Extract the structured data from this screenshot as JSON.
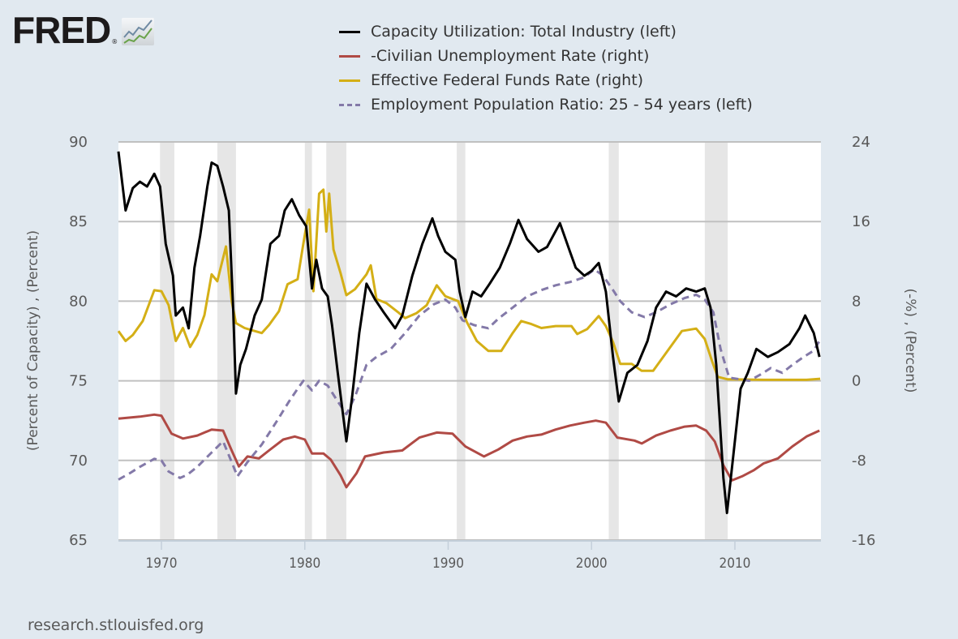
{
  "header": {
    "logo_text": "FRED",
    "logo_mark": "®",
    "logo_icon": "line-chart-icon"
  },
  "footer": {
    "source": "research.stlouisfed.org"
  },
  "colors": {
    "background": "#e1e9f0",
    "plot_background": "#ffffff",
    "recession_band": "#e6e6e6",
    "gridline": "#c0c0c0"
  },
  "chart_data": {
    "type": "line",
    "title": "",
    "xlabel": "",
    "ylabel_left": "(Percent of Capacity) , (Percent)",
    "ylabel_right": "(-%) , (Percent)",
    "xlim": [
      1967.0,
      2016.0
    ],
    "ylim_left": [
      65,
      90
    ],
    "ylim_right": [
      -16,
      24
    ],
    "x_ticks": [
      1970,
      1980,
      1990,
      2000,
      2010
    ],
    "y_ticks_left": [
      65,
      70,
      75,
      80,
      85,
      90
    ],
    "y_ticks_right": [
      -16,
      -8,
      0,
      8,
      16,
      24
    ],
    "grid": true,
    "legend_position": "top",
    "recessions": [
      [
        1969.9,
        1970.9
      ],
      [
        1973.9,
        1975.2
      ],
      [
        1980.0,
        1980.5
      ],
      [
        1981.5,
        1982.9
      ],
      [
        1990.6,
        1991.2
      ],
      [
        2001.2,
        2001.9
      ],
      [
        2007.9,
        2009.5
      ]
    ],
    "series": [
      {
        "name": "Capacity Utilization: Total Industry (left)",
        "axis": "left",
        "color": "#000000",
        "dash": false,
        "x": [
          1967.0,
          1967.5,
          1968.0,
          1968.5,
          1969.0,
          1969.5,
          1969.9,
          1970.3,
          1970.8,
          1971.0,
          1971.5,
          1971.9,
          1972.3,
          1972.7,
          1973.2,
          1973.5,
          1973.9,
          1974.3,
          1974.7,
          1975.0,
          1975.2,
          1975.5,
          1975.9,
          1976.5,
          1977.0,
          1977.6,
          1978.2,
          1978.6,
          1979.1,
          1979.6,
          1980.1,
          1980.5,
          1980.8,
          1981.2,
          1981.6,
          1981.9,
          1982.3,
          1982.9,
          1983.3,
          1983.8,
          1984.3,
          1984.9,
          1985.5,
          1986.3,
          1986.8,
          1987.5,
          1988.2,
          1988.9,
          1989.3,
          1989.8,
          1990.5,
          1990.8,
          1991.2,
          1991.7,
          1992.3,
          1992.9,
          1993.6,
          1994.3,
          1994.9,
          1995.5,
          1996.3,
          1996.9,
          1997.8,
          1998.5,
          1998.9,
          1999.5,
          2000.0,
          2000.5,
          2001.0,
          2001.5,
          2001.9,
          2002.5,
          2003.2,
          2003.9,
          2004.5,
          2005.2,
          2005.9,
          2006.6,
          2007.3,
          2007.9,
          2008.3,
          2008.7,
          2009.2,
          2009.45,
          2009.9,
          2010.4,
          2010.9,
          2011.5,
          2012.3,
          2013.0,
          2013.8,
          2014.5,
          2014.9,
          2015.5,
          2015.9
        ],
        "values": [
          89.4,
          85.7,
          87.1,
          87.5,
          87.2,
          88.0,
          87.2,
          83.6,
          81.6,
          79.1,
          79.6,
          78.3,
          82.1,
          84.1,
          87.2,
          88.7,
          88.5,
          87.2,
          85.7,
          79.6,
          74.2,
          76.0,
          77.0,
          79.1,
          80.1,
          83.6,
          84.1,
          85.7,
          86.4,
          85.4,
          84.7,
          80.8,
          82.6,
          80.8,
          80.3,
          78.5,
          75.5,
          71.2,
          74.0,
          78.0,
          81.1,
          80.1,
          79.3,
          78.3,
          79.1,
          81.6,
          83.6,
          85.2,
          84.1,
          83.1,
          82.6,
          80.6,
          79.0,
          80.6,
          80.3,
          81.1,
          82.1,
          83.6,
          85.1,
          83.9,
          83.1,
          83.4,
          84.9,
          83.1,
          82.1,
          81.6,
          81.9,
          82.4,
          80.6,
          76.5,
          73.7,
          75.5,
          76.0,
          77.5,
          79.6,
          80.6,
          80.3,
          80.8,
          80.6,
          80.8,
          79.6,
          76.0,
          68.9,
          66.7,
          70.4,
          74.5,
          75.5,
          77.0,
          76.5,
          76.8,
          77.3,
          78.3,
          79.1,
          78.0,
          76.5
        ]
      },
      {
        "name": "-Civilian Unemployment Rate (right)",
        "axis": "right",
        "color": "#b04a45",
        "dash": false,
        "x": [
          1967.0,
          1968.5,
          1969.5,
          1970.0,
          1970.7,
          1971.5,
          1972.5,
          1973.5,
          1974.3,
          1974.9,
          1975.4,
          1976.0,
          1976.8,
          1977.5,
          1978.5,
          1979.3,
          1980.0,
          1980.5,
          1981.3,
          1981.8,
          1982.5,
          1982.9,
          1983.6,
          1984.2,
          1985.5,
          1986.8,
          1988.0,
          1989.2,
          1990.3,
          1991.2,
          1992.5,
          1993.5,
          1994.5,
          1995.5,
          1996.5,
          1997.5,
          1998.5,
          1999.5,
          2000.3,
          2001.0,
          2001.8,
          2003.0,
          2003.5,
          2004.5,
          2005.5,
          2006.5,
          2007.3,
          2008.0,
          2008.6,
          2009.2,
          2009.8,
          2010.5,
          2011.3,
          2012.0,
          2013.0,
          2014.0,
          2015.0,
          2015.9
        ],
        "values": [
          -3.8,
          -3.6,
          -3.4,
          -3.5,
          -5.3,
          -5.8,
          -5.5,
          -4.9,
          -5.0,
          -7.0,
          -8.6,
          -7.6,
          -7.8,
          -7.0,
          -5.9,
          -5.6,
          -5.9,
          -7.3,
          -7.3,
          -7.9,
          -9.5,
          -10.7,
          -9.3,
          -7.6,
          -7.2,
          -7.0,
          -5.7,
          -5.2,
          -5.3,
          -6.6,
          -7.6,
          -6.9,
          -6.0,
          -5.6,
          -5.4,
          -4.9,
          -4.5,
          -4.2,
          -4.0,
          -4.2,
          -5.7,
          -6.0,
          -6.3,
          -5.5,
          -5.0,
          -4.6,
          -4.5,
          -5.0,
          -6.1,
          -8.5,
          -10.0,
          -9.6,
          -9.0,
          -8.3,
          -7.8,
          -6.6,
          -5.6,
          -5.0
        ]
      },
      {
        "name": "Effective Federal Funds Rate (right)",
        "axis": "right",
        "color": "#d4af16",
        "dash": false,
        "x": [
          1967.0,
          1967.5,
          1968.0,
          1968.7,
          1969.5,
          1970.0,
          1970.5,
          1971.0,
          1971.5,
          1972.0,
          1972.5,
          1973.0,
          1973.5,
          1973.9,
          1974.5,
          1974.9,
          1975.2,
          1975.8,
          1976.5,
          1977.0,
          1977.5,
          1978.2,
          1978.8,
          1979.5,
          1979.9,
          1980.3,
          1980.6,
          1981.0,
          1981.3,
          1981.5,
          1981.7,
          1982.0,
          1982.5,
          1982.9,
          1983.5,
          1984.3,
          1984.6,
          1985.0,
          1985.7,
          1986.5,
          1987.0,
          1987.8,
          1988.5,
          1989.2,
          1989.8,
          1990.7,
          1991.3,
          1992.0,
          1992.8,
          1993.7,
          1994.5,
          1995.1,
          1995.8,
          1996.5,
          1997.5,
          1998.6,
          1999.0,
          1999.7,
          2000.5,
          2001.0,
          2001.5,
          2002.0,
          2002.8,
          2003.5,
          2004.3,
          2005.2,
          2006.3,
          2007.3,
          2007.9,
          2008.4,
          2008.8,
          2009.5,
          2012.0,
          2015.0,
          2015.95
        ],
        "values": [
          5.0,
          4.0,
          4.6,
          6.0,
          9.1,
          9.0,
          7.6,
          4.0,
          5.3,
          3.4,
          4.6,
          6.6,
          10.7,
          10.0,
          13.5,
          8.0,
          5.8,
          5.3,
          5.0,
          4.8,
          5.6,
          7.0,
          9.7,
          10.2,
          13.8,
          17.2,
          9.0,
          18.8,
          19.2,
          15.0,
          18.8,
          13.2,
          10.8,
          8.6,
          9.2,
          10.7,
          11.6,
          8.2,
          7.8,
          6.9,
          6.3,
          6.8,
          7.6,
          9.6,
          8.5,
          8.0,
          5.9,
          4.0,
          3.0,
          3.0,
          4.8,
          6.0,
          5.7,
          5.3,
          5.5,
          5.5,
          4.7,
          5.2,
          6.5,
          5.5,
          3.9,
          1.7,
          1.7,
          1.0,
          1.0,
          2.8,
          5.0,
          5.25,
          4.2,
          2.0,
          0.4,
          0.15,
          0.1,
          0.1,
          0.2
        ]
      },
      {
        "name": "Employment Population Ratio: 25 - 54 years (left)",
        "axis": "left",
        "color": "#8379a8",
        "dash": true,
        "x": [
          1967.0,
          1967.8,
          1968.5,
          1969.5,
          1970.0,
          1970.5,
          1971.3,
          1971.8,
          1972.5,
          1973.5,
          1974.3,
          1974.9,
          1975.3,
          1976.0,
          1977.0,
          1978.0,
          1978.9,
          1979.5,
          1979.9,
          1980.5,
          1981.0,
          1981.6,
          1982.3,
          1982.9,
          1983.5,
          1984.3,
          1985.0,
          1986.0,
          1987.0,
          1988.0,
          1989.0,
          1989.8,
          1990.5,
          1991.0,
          1991.8,
          1992.8,
          1993.5,
          1994.5,
          1995.5,
          1996.5,
          1997.5,
          1998.5,
          1999.5,
          2000.2,
          2000.8,
          2001.5,
          2002.0,
          2002.8,
          2003.7,
          2004.5,
          2005.5,
          2006.5,
          2007.3,
          2007.9,
          2008.5,
          2009.0,
          2009.6,
          2010.3,
          2011.0,
          2011.8,
          2012.5,
          2013.3,
          2014.0,
          2014.8,
          2015.5,
          2015.9
        ],
        "values": [
          68.8,
          69.2,
          69.6,
          70.1,
          70.0,
          69.3,
          68.9,
          69.1,
          69.6,
          70.5,
          71.2,
          69.9,
          69.0,
          69.9,
          71.0,
          72.4,
          73.7,
          74.5,
          75.0,
          74.4,
          75.0,
          74.7,
          73.7,
          72.9,
          74.0,
          76.0,
          76.5,
          77.0,
          78.0,
          79.1,
          79.8,
          80.1,
          79.6,
          78.8,
          78.5,
          78.3,
          78.9,
          79.6,
          80.3,
          80.7,
          81.0,
          81.2,
          81.5,
          82.0,
          81.6,
          80.7,
          80.0,
          79.3,
          79.0,
          79.3,
          79.8,
          80.2,
          80.4,
          80.1,
          79.3,
          77.0,
          75.2,
          75.1,
          75.0,
          75.4,
          75.8,
          75.5,
          76.0,
          76.5,
          76.9,
          77.5
        ]
      }
    ]
  }
}
